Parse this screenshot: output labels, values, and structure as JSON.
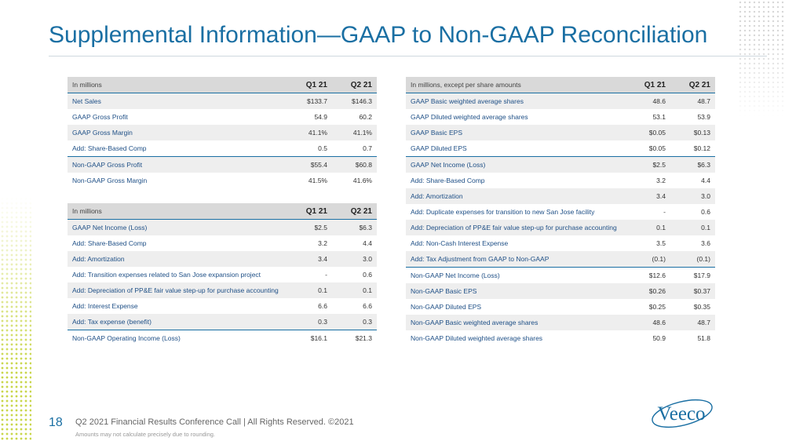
{
  "title": "Supplemental Information—GAAP to Non-GAAP Reconciliation",
  "table_gross": {
    "header": {
      "label": "In millions",
      "q1": "Q1 21",
      "q2": "Q2 21"
    },
    "rows": [
      {
        "label": "Net Sales",
        "q1": "$133.7",
        "q2": "$146.3"
      },
      {
        "label": "GAAP Gross Profit",
        "q1": "54.9",
        "q2": "60.2"
      },
      {
        "label": "GAAP Gross Margin",
        "q1": "41.1%",
        "q2": "41.1%"
      },
      {
        "label": "Add: Share-Based Comp",
        "q1": "0.5",
        "q2": "0.7"
      },
      {
        "label": "Non-GAAP Gross Profit",
        "q1": "$55.4",
        "q2": "$60.8"
      },
      {
        "label": "Non-GAAP Gross Margin",
        "q1": "41.5%",
        "q2": "41.6%"
      }
    ]
  },
  "table_operating": {
    "header": {
      "label": "In millions",
      "q1": "Q1 21",
      "q2": "Q2 21"
    },
    "rows": [
      {
        "label": "GAAP Net Income (Loss)",
        "q1": "$2.5",
        "q2": "$6.3"
      },
      {
        "label": "Add: Share-Based Comp",
        "q1": "3.2",
        "q2": "4.4"
      },
      {
        "label": "Add: Amortization",
        "q1": "3.4",
        "q2": "3.0"
      },
      {
        "label": "Add: Transition expenses related to San Jose expansion project",
        "q1": "-",
        "q2": "0.6"
      },
      {
        "label": "Add: Depreciation of PP&E fair value step-up for purchase accounting",
        "q1": "0.1",
        "q2": "0.1"
      },
      {
        "label": "Add: Interest Expense",
        "q1": "6.6",
        "q2": "6.6"
      },
      {
        "label": "Add: Tax expense (benefit)",
        "q1": "0.3",
        "q2": "0.3"
      },
      {
        "label": "Non-GAAP Operating Income (Loss)",
        "q1": "$16.1",
        "q2": "$21.3"
      }
    ]
  },
  "table_eps": {
    "header": {
      "label": "In millions, except per share amounts",
      "q1": "Q1 21",
      "q2": "Q2 21"
    },
    "rows": [
      {
        "label": "GAAP Basic weighted average shares",
        "q1": "48.6",
        "q2": "48.7"
      },
      {
        "label": "GAAP Diluted weighted average shares",
        "q1": "53.1",
        "q2": "53.9"
      },
      {
        "label": "GAAP Basic EPS",
        "q1": "$0.05",
        "q2": "$0.13"
      },
      {
        "label": "GAAP Diluted EPS",
        "q1": "$0.05",
        "q2": "$0.12"
      },
      {
        "label": "GAAP Net Income (Loss)",
        "q1": "$2.5",
        "q2": "$6.3"
      },
      {
        "label": "Add: Share-Based Comp",
        "q1": "3.2",
        "q2": "4.4"
      },
      {
        "label": "Add: Amortization",
        "q1": "3.4",
        "q2": "3.0"
      },
      {
        "label": "Add: Duplicate expenses for transition to new San Jose facility",
        "q1": "-",
        "q2": "0.6"
      },
      {
        "label": "Add: Depreciation of PP&E fair value step-up for purchase accounting",
        "q1": "0.1",
        "q2": "0.1"
      },
      {
        "label": "Add: Non-Cash Interest Expense",
        "q1": "3.5",
        "q2": "3.6"
      },
      {
        "label": "Add: Tax Adjustment from GAAP to Non-GAAP",
        "q1": "(0.1)",
        "q2": "(0.1)"
      },
      {
        "label": "Non-GAAP Net Income (Loss)",
        "q1": "$12.6",
        "q2": "$17.9"
      },
      {
        "label": "Non-GAAP Basic EPS",
        "q1": "$0.26",
        "q2": "$0.37"
      },
      {
        "label": "Non-GAAP Diluted EPS",
        "q1": "$0.25",
        "q2": "$0.35"
      },
      {
        "label": "Non-GAAP Basic weighted average shares",
        "q1": "48.6",
        "q2": "48.7"
      },
      {
        "label": "Non-GAAP Diluted weighted average shares",
        "q1": "50.9",
        "q2": "51.8"
      }
    ]
  },
  "footer": {
    "page_number": "18",
    "text": "Q2 2021 Financial Results Conference Call  |  All Rights Reserved. ©2021",
    "footnote": "Amounts may not calculate precisely due to rounding."
  },
  "logo": {
    "text": "Veeco",
    "name": "veeco-logo"
  },
  "colors": {
    "accent": "#1a6fa3",
    "header_bg": "#d9d9d9",
    "row_shade": "#eeeeee",
    "dots": "#c9d64a"
  }
}
